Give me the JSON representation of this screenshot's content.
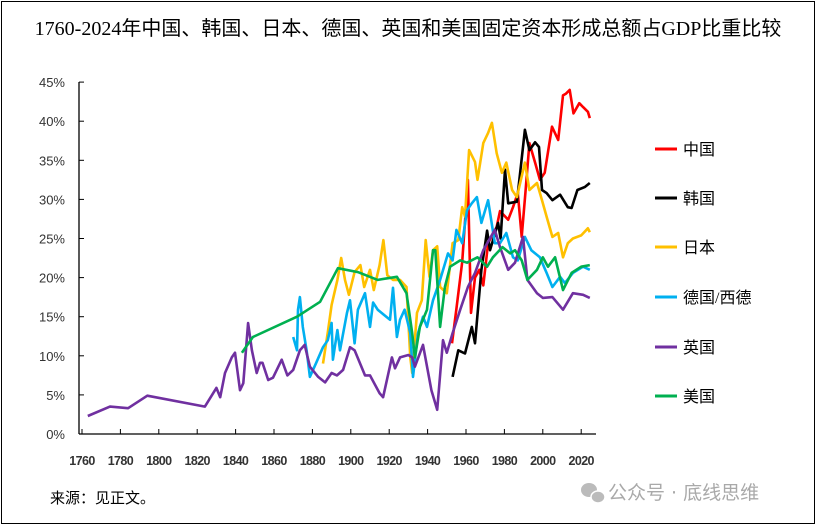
{
  "chart_data": {
    "type": "line",
    "title": "1760-2024年中国、韩国、日本、德国、英国和美国固定资本形成总额占GDP比重比较",
    "xlabel": "",
    "ylabel": "",
    "xlim": [
      1760,
      2026
    ],
    "ylim": [
      0,
      45
    ],
    "x_ticks": [
      "1760",
      "1780",
      "1800",
      "1820",
      "1840",
      "1860",
      "1880",
      "1900",
      "1920",
      "1940",
      "1960",
      "1980",
      "2000",
      "2020"
    ],
    "y_ticks": [
      "0%",
      "5%",
      "10%",
      "15%",
      "20%",
      "25%",
      "30%",
      "35%",
      "40%",
      "45%"
    ],
    "grid": false,
    "legend_position": "right",
    "series": [
      {
        "name": "中国",
        "color": "#FF0000",
        "points": [
          [
            1952.7,
            11.6
          ],
          [
            1955,
            16
          ],
          [
            1958,
            22
          ],
          [
            1961,
            32.5
          ],
          [
            1962.6,
            15.5
          ],
          [
            1964.7,
            20
          ],
          [
            1967,
            21
          ],
          [
            1969,
            19
          ],
          [
            1971.5,
            24.4
          ],
          [
            1976,
            26.5
          ],
          [
            1977.7,
            28.5
          ],
          [
            1982,
            27.4
          ],
          [
            1984.5,
            29
          ],
          [
            1987,
            30.8
          ],
          [
            1989,
            25.2
          ],
          [
            1991,
            31
          ],
          [
            1993,
            37.2
          ],
          [
            1996,
            34.7
          ],
          [
            1998.5,
            32.5
          ],
          [
            2001,
            33.4
          ],
          [
            2004.8,
            39.3
          ],
          [
            2008,
            37.6
          ],
          [
            2010.5,
            43.3
          ],
          [
            2012,
            43.5
          ],
          [
            2014,
            44
          ],
          [
            2016,
            41
          ],
          [
            2019,
            42.3
          ],
          [
            2021,
            41.8
          ],
          [
            2023.5,
            41.2
          ],
          [
            2024.5,
            40.4
          ]
        ]
      },
      {
        "name": "韩国",
        "color": "#000000",
        "points": [
          [
            1953,
            7.3
          ],
          [
            1956,
            10.7
          ],
          [
            1959.5,
            10.3
          ],
          [
            1963,
            13.7
          ],
          [
            1964.7,
            11.6
          ],
          [
            1968,
            21
          ],
          [
            1971,
            26
          ],
          [
            1972.5,
            23.5
          ],
          [
            1976.7,
            27
          ],
          [
            1978,
            25
          ],
          [
            1980.3,
            33.8
          ],
          [
            1982,
            29.5
          ],
          [
            1986.5,
            29.7
          ],
          [
            1988,
            33
          ],
          [
            1990.7,
            38.9
          ],
          [
            1993,
            36.3
          ],
          [
            1996,
            37.3
          ],
          [
            1998,
            36.7
          ],
          [
            1999.6,
            31.2
          ],
          [
            2002,
            30.8
          ],
          [
            2005,
            29.9
          ],
          [
            2009,
            30.6
          ],
          [
            2013,
            29
          ],
          [
            2015,
            28.9
          ],
          [
            2018,
            31.2
          ],
          [
            2022,
            31.6
          ],
          [
            2024.5,
            32.1
          ]
        ]
      },
      {
        "name": "日本",
        "color": "#FFC000",
        "points": [
          [
            1885.5,
            9
          ],
          [
            1888,
            13
          ],
          [
            1890,
            16.5
          ],
          [
            1893,
            19.7
          ],
          [
            1895,
            22.5
          ],
          [
            1897,
            19.7
          ],
          [
            1899,
            17.8
          ],
          [
            1902,
            20.7
          ],
          [
            1905,
            21.6
          ],
          [
            1907,
            18.8
          ],
          [
            1910,
            21
          ],
          [
            1912,
            18.4
          ],
          [
            1915,
            21.6
          ],
          [
            1917,
            24.8
          ],
          [
            1919,
            20.3
          ],
          [
            1922,
            19.7
          ],
          [
            1925.6,
            19.7
          ],
          [
            1929,
            18.8
          ],
          [
            1931,
            9.8
          ],
          [
            1932,
            7.8
          ],
          [
            1934.5,
            15.5
          ],
          [
            1937,
            17.1
          ],
          [
            1939,
            24.8
          ],
          [
            1941,
            20.1
          ],
          [
            1942.8,
            23.5
          ],
          [
            1945,
            24
          ],
          [
            1946.5,
            18.8
          ],
          [
            1950,
            18
          ],
          [
            1953,
            24.4
          ],
          [
            1956,
            24.8
          ],
          [
            1958,
            29
          ],
          [
            1959.5,
            27.8
          ],
          [
            1961.6,
            36.3
          ],
          [
            1964.7,
            34.8
          ],
          [
            1966,
            32.5
          ],
          [
            1969,
            37.2
          ],
          [
            1971.5,
            38.5
          ],
          [
            1973.5,
            39.8
          ],
          [
            1976,
            35.9
          ],
          [
            1978.7,
            33.4
          ],
          [
            1981,
            34.7
          ],
          [
            1984,
            31.2
          ],
          [
            1986.5,
            30.3
          ],
          [
            1990.7,
            34.7
          ],
          [
            1993,
            31.2
          ],
          [
            1997,
            32.1
          ],
          [
            1999.6,
            29.9
          ],
          [
            2002,
            27.8
          ],
          [
            2005,
            25.2
          ],
          [
            2008,
            25.7
          ],
          [
            2010.5,
            22.6
          ],
          [
            2013,
            24.4
          ],
          [
            2015.7,
            25
          ],
          [
            2020,
            25.4
          ],
          [
            2023.5,
            26.3
          ],
          [
            2024.5,
            25.8
          ]
        ]
      },
      {
        "name": "德国/西德",
        "color": "#00B0F0",
        "points": [
          [
            1870,
            12.4
          ],
          [
            1872,
            10.7
          ],
          [
            1872.5,
            15.9
          ],
          [
            1873.5,
            17.5
          ],
          [
            1875,
            13.7
          ],
          [
            1877,
            10.7
          ],
          [
            1878.7,
            7.3
          ],
          [
            1882,
            9.1
          ],
          [
            1885.5,
            11.1
          ],
          [
            1888,
            12
          ],
          [
            1890,
            14.2
          ],
          [
            1890.7,
            9.5
          ],
          [
            1893,
            13.3
          ],
          [
            1894.4,
            10.7
          ],
          [
            1898,
            15.5
          ],
          [
            1899.6,
            17.1
          ],
          [
            1902,
            11.6
          ],
          [
            1903.7,
            15.9
          ],
          [
            1907.4,
            18
          ],
          [
            1910,
            13.7
          ],
          [
            1911.6,
            16.8
          ],
          [
            1914,
            15.9
          ],
          [
            1920.4,
            14.6
          ],
          [
            1922,
            18.7
          ],
          [
            1924,
            12.4
          ],
          [
            1925.6,
            14.6
          ],
          [
            1928,
            15.9
          ],
          [
            1931,
            12.9
          ],
          [
            1932.4,
            7.3
          ],
          [
            1935,
            12.9
          ],
          [
            1937.6,
            15
          ],
          [
            1939.7,
            13.7
          ],
          [
            1942.8,
            17.1
          ],
          [
            1946.5,
            19.7
          ],
          [
            1950.6,
            23.1
          ],
          [
            1953,
            22.2
          ],
          [
            1955,
            26.1
          ],
          [
            1958,
            24.4
          ],
          [
            1960.5,
            28.6
          ],
          [
            1963,
            29.5
          ],
          [
            1965.7,
            30.3
          ],
          [
            1968,
            27
          ],
          [
            1971.5,
            29.9
          ],
          [
            1975,
            24.4
          ],
          [
            1977.7,
            24.4
          ],
          [
            1981,
            25.7
          ],
          [
            1984.5,
            22.6
          ],
          [
            1987,
            22.2
          ],
          [
            1990.7,
            25.2
          ],
          [
            1994,
            23.5
          ],
          [
            1998.5,
            22.6
          ],
          [
            2002,
            20.6
          ],
          [
            2005,
            18.8
          ],
          [
            2009,
            20.1
          ],
          [
            2011.5,
            19.3
          ],
          [
            2015.7,
            20.6
          ],
          [
            2021,
            21.4
          ],
          [
            2024.5,
            21
          ]
        ]
      },
      {
        "name": "英国",
        "color": "#7030A0",
        "points": [
          [
            1763,
            2.3
          ],
          [
            1774.6,
            3.5
          ],
          [
            1784,
            3.3
          ],
          [
            1794,
            4.9
          ],
          [
            1824,
            3.5
          ],
          [
            1830,
            5.9
          ],
          [
            1832,
            4.7
          ],
          [
            1834.5,
            7.8
          ],
          [
            1838,
            9.8
          ],
          [
            1839.7,
            10.4
          ],
          [
            1842.3,
            5.6
          ],
          [
            1844,
            6.5
          ],
          [
            1846.5,
            14.2
          ],
          [
            1848.5,
            10.7
          ],
          [
            1851,
            7.8
          ],
          [
            1852.7,
            9.1
          ],
          [
            1854,
            9.1
          ],
          [
            1857,
            6.9
          ],
          [
            1859.5,
            7.2
          ],
          [
            1864,
            9.5
          ],
          [
            1867,
            7.5
          ],
          [
            1870,
            8.2
          ],
          [
            1873.5,
            10.7
          ],
          [
            1876,
            11.4
          ],
          [
            1878.7,
            8.6
          ],
          [
            1883,
            7.3
          ],
          [
            1886.6,
            6.6
          ],
          [
            1890,
            7.8
          ],
          [
            1892.8,
            7.5
          ],
          [
            1896,
            8.2
          ],
          [
            1899.6,
            11.1
          ],
          [
            1902,
            10.7
          ],
          [
            1907.4,
            7.5
          ],
          [
            1910,
            7.5
          ],
          [
            1915,
            5.2
          ],
          [
            1916.8,
            4.7
          ],
          [
            1921.4,
            9.8
          ],
          [
            1923,
            8.4
          ],
          [
            1925.6,
            9.8
          ],
          [
            1930,
            10.1
          ],
          [
            1932,
            9.8
          ],
          [
            1933.4,
            8.6
          ],
          [
            1937.6,
            11.4
          ],
          [
            1942,
            5.6
          ],
          [
            1945,
            3.1
          ],
          [
            1948,
            12
          ],
          [
            1950,
            10.4
          ],
          [
            1953,
            12.9
          ],
          [
            1957,
            15.9
          ],
          [
            1961,
            18.8
          ],
          [
            1964.7,
            20.6
          ],
          [
            1969,
            23.5
          ],
          [
            1975,
            26.1
          ],
          [
            1977.7,
            23.9
          ],
          [
            1982,
            21
          ],
          [
            1985.5,
            21.9
          ],
          [
            1989.7,
            25.2
          ],
          [
            1992,
            19.7
          ],
          [
            1997,
            18
          ],
          [
            2000,
            17.4
          ],
          [
            2005,
            17.5
          ],
          [
            2010.5,
            15.9
          ],
          [
            2015.7,
            18
          ],
          [
            2021,
            17.8
          ],
          [
            2024.5,
            17.4
          ]
        ]
      },
      {
        "name": "美国",
        "color": "#00B050",
        "points": [
          [
            1843.3,
            10.4
          ],
          [
            1849,
            12.4
          ],
          [
            1872,
            15
          ],
          [
            1884,
            16.9
          ],
          [
            1893.3,
            21.2
          ],
          [
            1903.7,
            20.7
          ],
          [
            1914,
            19.7
          ],
          [
            1924,
            20.1
          ],
          [
            1929,
            18
          ],
          [
            1932,
            12.9
          ],
          [
            1933.4,
            9.8
          ],
          [
            1936,
            13.7
          ],
          [
            1939.7,
            15.9
          ],
          [
            1942.8,
            23.5
          ],
          [
            1944,
            23.5
          ],
          [
            1946.5,
            13.7
          ],
          [
            1949,
            18.8
          ],
          [
            1951.7,
            21.4
          ],
          [
            1957,
            22.2
          ],
          [
            1960.5,
            21.9
          ],
          [
            1966,
            22.6
          ],
          [
            1971,
            21.4
          ],
          [
            1974,
            22.6
          ],
          [
            1979,
            23.9
          ],
          [
            1983,
            23.1
          ],
          [
            1985.5,
            23.5
          ],
          [
            1989,
            22.2
          ],
          [
            1992,
            19.7
          ],
          [
            1997,
            21
          ],
          [
            2000,
            22.6
          ],
          [
            2002.7,
            21.4
          ],
          [
            2006.4,
            22.6
          ],
          [
            2010.5,
            18.4
          ],
          [
            2015,
            20.6
          ],
          [
            2020,
            21.4
          ],
          [
            2024.5,
            21.6
          ]
        ]
      }
    ],
    "annotations": {
      "source": "来源：见正文。"
    }
  },
  "watermark": "公众号 · 底线思维"
}
